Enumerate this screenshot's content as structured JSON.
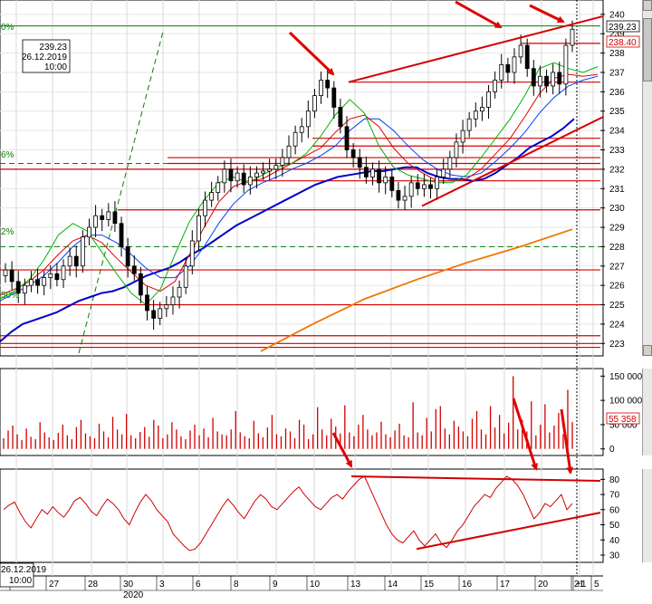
{
  "chart_data": [
    {
      "panel": "price",
      "type": "candlestick",
      "ylim": [
        222.5,
        240.6
      ],
      "y_ticks": [
        223,
        224,
        225,
        226,
        227,
        228,
        229,
        230,
        231,
        232,
        233,
        234,
        235,
        236,
        237,
        238,
        239,
        240
      ],
      "cursor_label": {
        "price": "239.23",
        "date": "26.12.2019",
        "time": "10:00"
      },
      "last_price_label": "239.23",
      "marked_price_label": "238.40",
      "fib_labels": [
        "0%",
        "6%",
        "2%",
        "50%"
      ],
      "close_series": [
        226.8,
        226.2,
        225.6,
        226.0,
        226.3,
        226.0,
        226.4,
        226.6,
        226.3,
        227.0,
        227.5,
        227.0,
        228.5,
        229.0,
        229.6,
        229.4,
        229.8,
        229.2,
        228.0,
        227.0,
        226.6,
        225.5,
        224.7,
        224.3,
        224.8,
        225.0,
        225.4,
        225.9,
        227.0,
        228.3,
        229.6,
        230.4,
        230.8,
        231.3,
        232.0,
        231.4,
        231.8,
        231.2,
        231.6,
        231.8,
        231.9,
        232.0,
        232.2,
        232.6,
        233.2,
        233.9,
        234.2,
        235.0,
        235.8,
        236.6,
        236.2,
        235.2,
        234.2,
        233.0,
        232.6,
        232.1,
        231.6,
        232.0,
        231.3,
        231.6,
        230.9,
        230.4,
        230.6,
        231.3,
        231.0,
        231.2,
        231.0,
        231.6,
        232.0,
        232.6,
        233.4,
        234.0,
        234.6,
        235.0,
        235.2,
        236.0,
        236.6,
        237.4,
        237.0,
        237.8,
        238.4,
        237.2,
        236.3,
        236.8,
        236.3,
        237.0,
        236.4,
        238.4,
        239.23
      ],
      "sma_long": [
        223.1,
        223.6,
        224.0,
        224.2,
        224.4,
        224.6,
        224.9,
        225.2,
        225.4,
        225.6,
        225.7,
        225.9,
        226.2,
        226.5,
        226.7,
        226.9,
        227.2,
        227.6,
        227.9,
        228.3,
        228.7,
        229.1,
        229.4,
        229.7,
        230.0,
        230.3,
        230.6,
        230.9,
        231.2,
        231.4,
        231.6,
        231.7,
        231.8,
        231.9,
        231.9,
        232.0,
        232.1,
        232.1,
        231.8,
        231.6,
        231.5,
        231.5,
        231.4,
        231.5,
        231.8,
        232.2,
        232.6,
        233.1,
        233.4,
        233.7,
        234.1,
        234.6
      ],
      "sma_orange": [
        222.6,
        224.0,
        225.3,
        226.3,
        227.2,
        228.0,
        228.9
      ],
      "ma_fast_green": [
        225.3,
        225.7,
        226.3,
        227.3,
        228.6,
        229.2,
        228.8,
        227.7,
        226.6,
        225.6,
        225.0,
        225.8,
        227.6,
        229.3,
        230.4,
        231.3,
        231.6,
        231.3,
        231.7,
        232.1,
        232.3,
        232.8,
        233.7,
        234.8,
        235.6,
        234.9,
        233.2,
        232.1,
        231.7,
        231.5,
        231.3,
        231.3,
        231.7,
        232.6,
        233.6,
        234.6,
        235.8,
        237.2,
        237.5,
        237.2,
        237.0,
        237.3
      ],
      "ma_red": [
        225.5,
        225.8,
        226.2,
        226.8,
        227.6,
        228.3,
        228.6,
        228.2,
        227.4,
        226.7,
        226.0,
        225.7,
        226.2,
        227.6,
        229.0,
        230.3,
        231.1,
        231.4,
        231.5,
        231.9,
        232.3,
        232.7,
        233.1,
        233.9,
        234.6,
        234.8,
        234.2,
        233.1,
        232.3,
        231.8,
        231.4,
        231.4,
        231.5,
        232.0,
        232.8,
        233.6,
        234.7,
        235.9,
        236.7,
        236.9,
        236.8,
        236.9
      ],
      "ma_blue_thin": [
        225.2,
        225.6,
        226.0,
        226.5,
        227.2,
        228.0,
        228.6,
        228.6,
        228.2,
        227.6,
        226.9,
        226.4,
        226.4,
        227.0,
        228.0,
        229.2,
        230.2,
        230.9,
        231.3,
        231.6,
        232.0,
        232.3,
        232.7,
        233.2,
        234.0,
        234.6,
        234.6,
        234.0,
        233.2,
        232.5,
        232.0,
        231.7,
        231.6,
        231.8,
        232.4,
        233.1,
        233.9,
        234.9,
        235.7,
        236.3,
        236.6,
        236.8
      ],
      "horizontal_lines": [
        {
          "price": 238.5,
          "kind": "resistance"
        },
        {
          "price": 236.5,
          "kind": "resistance"
        },
        {
          "price": 233.6,
          "kind": "level"
        },
        {
          "price": 233.2,
          "kind": "level"
        },
        {
          "price": 232.6,
          "kind": "level"
        },
        {
          "price": 232.3,
          "kind": "level"
        },
        {
          "price": 232.0,
          "kind": "level"
        },
        {
          "price": 231.4,
          "kind": "level"
        },
        {
          "price": 229.9,
          "kind": "level"
        },
        {
          "price": 226.8,
          "kind": "level"
        },
        {
          "price": 225.0,
          "kind": "level"
        },
        {
          "price": 223.4,
          "kind": "level"
        },
        {
          "price": 223.0,
          "kind": "level"
        },
        {
          "price": 222.8,
          "kind": "level"
        }
      ],
      "fib_levels": [
        {
          "label": "0%",
          "price": 239.4
        },
        {
          "label": "6%",
          "price": 232.3
        },
        {
          "label": "2%",
          "price": 228.0
        }
      ]
    },
    {
      "panel": "volume",
      "type": "bar",
      "ylim": [
        -8000,
        160000
      ],
      "y_ticks": [
        0,
        50000,
        100000,
        150000
      ],
      "y_tick_labels": [
        "0",
        "50 000",
        "100 000",
        "150 000"
      ],
      "last_value_label": "55 358",
      "values": [
        22000,
        38000,
        48000,
        30000,
        18000,
        42000,
        25000,
        20000,
        55000,
        34000,
        24000,
        18000,
        33000,
        50000,
        28000,
        20000,
        45000,
        60000,
        32000,
        26000,
        22000,
        52000,
        36000,
        24000,
        66000,
        40000,
        30000,
        72000,
        28000,
        22000,
        35000,
        45000,
        25000,
        60000,
        48000,
        22000,
        30000,
        55000,
        40000,
        26000,
        20000,
        38000,
        50000,
        28000,
        42000,
        24000,
        64000,
        36000,
        30000,
        28000,
        40000,
        78000,
        34000,
        26000,
        22000,
        58000,
        32000,
        24000,
        44000,
        70000,
        30000,
        26000,
        42000,
        36000,
        22000,
        60000,
        50000,
        20000,
        30000,
        86000,
        40000,
        28000,
        62000,
        46000,
        32000,
        90000,
        34000,
        26000,
        50000,
        70000,
        40000,
        28000,
        34000,
        56000,
        30000,
        24000,
        38000,
        52000,
        28000,
        24000,
        96000,
        34000,
        28000,
        64000,
        36000,
        82000,
        88000,
        42000,
        30000,
        58000,
        46000,
        36000,
        26000,
        62000,
        78000,
        40000,
        30000,
        88000,
        44000,
        70000,
        32000,
        54000,
        150000,
        40000,
        60000,
        36000,
        98000,
        28000,
        50000,
        92000,
        34000,
        48000,
        74000,
        30000,
        122000,
        55358
      ]
    },
    {
      "panel": "oscillator",
      "type": "line",
      "ylim": [
        27,
        85
      ],
      "y_ticks": [
        30,
        40,
        50,
        60,
        70,
        80
      ],
      "values": [
        60,
        63,
        65,
        58,
        52,
        48,
        54,
        60,
        57,
        62,
        58,
        55,
        60,
        66,
        68,
        64,
        59,
        56,
        62,
        67,
        64,
        60,
        54,
        50,
        58,
        65,
        70,
        66,
        60,
        56,
        52,
        44,
        40,
        36,
        33,
        34,
        38,
        44,
        50,
        56,
        62,
        67,
        63,
        58,
        54,
        60,
        66,
        70,
        67,
        62,
        60,
        64,
        68,
        72,
        75,
        70,
        66,
        62,
        60,
        64,
        68,
        70,
        67,
        72,
        76,
        80,
        82,
        74,
        66,
        58,
        50,
        44,
        40,
        38,
        42,
        46,
        40,
        36,
        40,
        44,
        38,
        35,
        40,
        46,
        50,
        56,
        62,
        66,
        70,
        68,
        74,
        78,
        82,
        80,
        76,
        70,
        62,
        54,
        58,
        64,
        62,
        66,
        70,
        60,
        64
      ],
      "trendlines": "upper resistance line ~82 and rising support line ~36→60"
    }
  ],
  "x_axis": {
    "labels": [
      "26",
      "27",
      "28",
      "30",
      "3",
      "6",
      "8",
      "9",
      "10",
      "13",
      "14",
      "15",
      "16",
      "17",
      "20",
      "21",
      "+1",
      "5"
    ],
    "month_label": "2020",
    "cursor_date": "26.12.2019",
    "cursor_time": "10:00"
  },
  "colors": {
    "candle": "#000000",
    "horizontal_level": "#d40000",
    "sma_long": "#0000cc",
    "sma_orange": "#f07800",
    "ma_green": "#00b400",
    "ma_red": "#e00000",
    "ma_blue_thin": "#0040ff",
    "fib": "#008000",
    "volume": "#d00000",
    "oscillator": "#d00000",
    "arrow": "#e00000",
    "price_label_bg": "#ffffff"
  }
}
